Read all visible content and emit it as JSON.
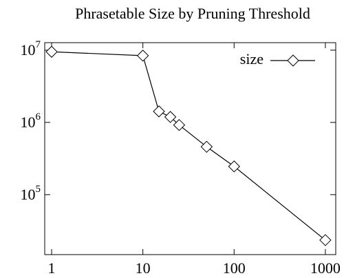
{
  "chart_data": {
    "type": "line",
    "title": "Phrasetable Size by Pruning Threshold",
    "x": [
      1,
      10,
      15,
      20,
      25,
      50,
      100,
      1000
    ],
    "series": [
      {
        "name": "size",
        "color": "#000000",
        "marker": "diamond",
        "values": [
          9500000,
          8400000,
          1420000,
          1190000,
          920000,
          460000,
          246000,
          23500
        ]
      }
    ],
    "xlim": [
      0.84,
      1300
    ],
    "xticks": [
      1,
      10,
      100,
      1000
    ],
    "xscale": "log",
    "ylim": [
      14800,
      12700000
    ],
    "yticks": [
      {
        "value": 100000,
        "label": "10^5"
      },
      {
        "value": 1000000,
        "label": "10^6"
      },
      {
        "value": 10000000,
        "label": "10^7"
      }
    ],
    "yscale": "log",
    "legend": "upper right",
    "grid": false
  }
}
